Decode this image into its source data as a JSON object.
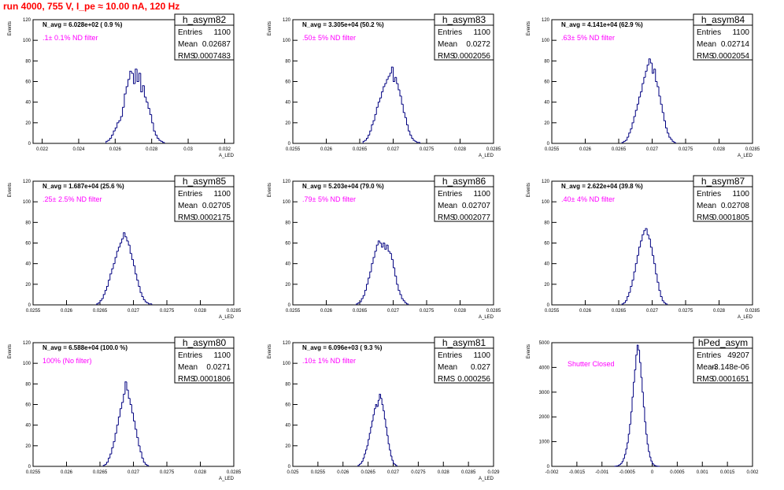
{
  "title": "run 4000,   755 V, I_pe ≈ 10.00 nA, 120 Hz",
  "chart_data": [
    {
      "type": "bar",
      "name": "h_asym82",
      "navg": "N_avg = 6.028e+02 ( 0.9 %)",
      "filter": ".1± 0.1% ND filter",
      "stats": [
        [
          "Entries",
          "1100"
        ],
        [
          "Mean",
          "0.02687"
        ],
        [
          "RMS",
          "0.0007483"
        ]
      ],
      "xlabel": "A_LED",
      "ylabel": "Events",
      "xlim": [
        0.0215,
        0.0325
      ],
      "ylim": [
        0,
        120
      ],
      "xticks": [
        "0.022",
        "0.024",
        "0.026",
        "0.028",
        "0.03",
        "0.032"
      ],
      "xtick_values": [
        0.022,
        0.024,
        0.026,
        0.028,
        0.03,
        0.032
      ],
      "yticks": [
        0,
        20,
        40,
        60,
        80,
        100,
        120
      ],
      "bins": {
        "start": 0.0255,
        "width": 0.0001,
        "values": [
          2,
          3,
          5,
          8,
          12,
          15,
          20,
          22,
          26,
          35,
          48,
          55,
          62,
          70,
          68,
          58,
          72,
          60,
          68,
          50,
          56,
          45,
          40,
          34,
          28,
          20,
          12,
          8,
          5,
          3,
          2,
          1
        ]
      }
    },
    {
      "type": "bar",
      "name": "h_asym83",
      "navg": "N_avg = 3.305e+04 (50.2 %)",
      "filter": ".50± 5% ND filter",
      "stats": [
        [
          "Entries",
          "1100"
        ],
        [
          "Mean",
          "0.0272"
        ],
        [
          "RMS",
          "0.0002056"
        ]
      ],
      "xlabel": "A_LED",
      "ylabel": "Events",
      "xlim": [
        0.0255,
        0.0285
      ],
      "ylim": [
        0,
        120
      ],
      "xticks": [
        "0.0255",
        "0.026",
        "0.0265",
        "0.027",
        "0.0275",
        "0.028",
        "0.0285"
      ],
      "xtick_values": [
        0.0255,
        0.026,
        0.0265,
        0.027,
        0.0275,
        0.028,
        0.0285
      ],
      "yticks": [
        0,
        20,
        40,
        60,
        80,
        100,
        120
      ],
      "bins": {
        "start": 0.02655,
        "width": 2.5e-05,
        "values": [
          2,
          3,
          5,
          8,
          12,
          18,
          22,
          28,
          35,
          40,
          44,
          50,
          55,
          58,
          62,
          65,
          68,
          74,
          60,
          64,
          58,
          52,
          46,
          38,
          30,
          25,
          18,
          12,
          8,
          5,
          3,
          2,
          1,
          1
        ]
      }
    },
    {
      "type": "bar",
      "name": "h_asym84",
      "navg": "N_avg = 4.141e+04 (62.9 %)",
      "filter": ".63± 5% ND filter",
      "stats": [
        [
          "Entries",
          "1100"
        ],
        [
          "Mean",
          "0.02714"
        ],
        [
          "RMS",
          "0.0002054"
        ]
      ],
      "xlabel": "A_LED",
      "ylabel": "Events",
      "xlim": [
        0.0255,
        0.0285
      ],
      "ylim": [
        0,
        120
      ],
      "xticks": [
        "0.0255",
        "0.026",
        "0.0265",
        "0.027",
        "0.0275",
        "0.028",
        "0.0285"
      ],
      "xtick_values": [
        0.0255,
        0.026,
        0.0265,
        0.027,
        0.0275,
        0.028,
        0.0285
      ],
      "yticks": [
        0,
        20,
        40,
        60,
        80,
        100,
        120
      ],
      "bins": {
        "start": 0.02655,
        "width": 2.5e-05,
        "values": [
          1,
          2,
          3,
          6,
          10,
          14,
          20,
          26,
          32,
          38,
          45,
          50,
          58,
          64,
          70,
          76,
          82,
          78,
          68,
          72,
          60,
          55,
          46,
          38,
          30,
          22,
          15,
          10,
          6,
          4,
          2,
          1
        ]
      }
    },
    {
      "type": "bar",
      "name": "h_asym85",
      "navg": "N_avg = 1.687e+04 (25.6 %)",
      "filter": ".25± 2.5% ND filter",
      "stats": [
        [
          "Entries",
          "1100"
        ],
        [
          "Mean",
          "0.02705"
        ],
        [
          "RMS",
          "0.0002175"
        ]
      ],
      "xlabel": "A_LED",
      "ylabel": "Events",
      "xlim": [
        0.0255,
        0.0285
      ],
      "ylim": [
        0,
        120
      ],
      "xticks": [
        "0.0255",
        "0.026",
        "0.0265",
        "0.027",
        "0.0275",
        "0.028",
        "0.0285"
      ],
      "xtick_values": [
        0.0255,
        0.026,
        0.0265,
        0.027,
        0.0275,
        0.028,
        0.0285
      ],
      "yticks": [
        0,
        20,
        40,
        60,
        80,
        100,
        120
      ],
      "bins": {
        "start": 0.02645,
        "width": 2.5e-05,
        "values": [
          1,
          2,
          4,
          6,
          10,
          14,
          18,
          24,
          30,
          35,
          40,
          46,
          52,
          56,
          60,
          64,
          70,
          66,
          62,
          58,
          50,
          44,
          38,
          30,
          24,
          18,
          12,
          8,
          5,
          3,
          2,
          1,
          1
        ]
      }
    },
    {
      "type": "bar",
      "name": "h_asym86",
      "navg": "N_avg = 5.203e+04 (79.0 %)",
      "filter": ".79± 5% ND filter",
      "stats": [
        [
          "Entries",
          "1100"
        ],
        [
          "Mean",
          "0.02707"
        ],
        [
          "RMS",
          "0.0002077"
        ]
      ],
      "xlabel": "A_LED",
      "ylabel": "Events",
      "xlim": [
        0.0255,
        0.0285
      ],
      "ylim": [
        0,
        120
      ],
      "xticks": [
        "0.0255",
        "0.026",
        "0.0265",
        "0.027",
        "0.0275",
        "0.028",
        "0.0285"
      ],
      "xtick_values": [
        0.0255,
        0.026,
        0.0265,
        0.027,
        0.0275,
        0.028,
        0.0285
      ],
      "yticks": [
        0,
        20,
        40,
        60,
        80,
        100,
        120
      ],
      "bins": {
        "start": 0.02645,
        "width": 2.5e-05,
        "values": [
          1,
          2,
          3,
          6,
          9,
          14,
          20,
          26,
          32,
          40,
          46,
          52,
          58,
          62,
          60,
          56,
          60,
          54,
          58,
          52,
          50,
          44,
          36,
          28,
          20,
          14,
          10,
          6,
          4,
          2,
          1
        ]
      }
    },
    {
      "type": "bar",
      "name": "h_asym87",
      "navg": "N_avg = 2.622e+04 (39.8 %)",
      "filter": ".40± 4% ND filter",
      "stats": [
        [
          "Entries",
          "1100"
        ],
        [
          "Mean",
          "0.02708"
        ],
        [
          "RMS",
          "0.0001805"
        ]
      ],
      "xlabel": "A_LED",
      "ylabel": "Events",
      "xlim": [
        0.0255,
        0.0285
      ],
      "ylim": [
        0,
        120
      ],
      "xticks": [
        "0.0255",
        "0.026",
        "0.0265",
        "0.027",
        "0.0275",
        "0.028",
        "0.0285"
      ],
      "xtick_values": [
        0.0255,
        0.026,
        0.0265,
        0.027,
        0.0275,
        0.028,
        0.0285
      ],
      "yticks": [
        0,
        20,
        40,
        60,
        80,
        100,
        120
      ],
      "bins": {
        "start": 0.02655,
        "width": 2.5e-05,
        "values": [
          1,
          2,
          4,
          8,
          12,
          18,
          24,
          32,
          40,
          48,
          56,
          62,
          68,
          72,
          74,
          68,
          64,
          56,
          48,
          40,
          30,
          22,
          14,
          8,
          4,
          2,
          1
        ]
      }
    },
    {
      "type": "bar",
      "name": "h_asym80",
      "navg": "N_avg = 6.588e+04 (100.0 %)",
      "filter": "100% (No filter)",
      "stats": [
        [
          "Entries",
          "1100"
        ],
        [
          "Mean",
          "0.0271"
        ],
        [
          "RMS",
          "0.0001806"
        ]
      ],
      "xlabel": "A_LED",
      "ylabel": "Events",
      "xlim": [
        0.0255,
        0.0285
      ],
      "ylim": [
        0,
        120
      ],
      "xticks": [
        "0.0255",
        "0.026",
        "0.0265",
        "0.027",
        "0.0275",
        "0.028",
        "0.0285"
      ],
      "xtick_values": [
        0.0255,
        0.026,
        0.0265,
        0.027,
        0.0275,
        0.028,
        0.0285
      ],
      "yticks": [
        0,
        20,
        40,
        60,
        80,
        100,
        120
      ],
      "bins": {
        "start": 0.02655,
        "width": 2.5e-05,
        "values": [
          1,
          2,
          4,
          8,
          12,
          18,
          24,
          32,
          40,
          48,
          56,
          62,
          70,
          82,
          74,
          66,
          60,
          52,
          44,
          36,
          28,
          20,
          14,
          8,
          4,
          2,
          1
        ]
      }
    },
    {
      "type": "bar",
      "name": "h_asym81",
      "navg": "N_avg = 6.096e+03 ( 9.3 %)",
      "filter": ".10± 1% ND filter",
      "stats": [
        [
          "Entries",
          "1100"
        ],
        [
          "Mean",
          "0.027"
        ],
        [
          "RMS",
          "0.000256"
        ]
      ],
      "xlabel": "A_LED",
      "ylabel": "Events",
      "xlim": [
        0.025,
        0.029
      ],
      "ylim": [
        0,
        120
      ],
      "xticks": [
        "0.025",
        "0.0255",
        "0.026",
        "0.0265",
        "0.027",
        "0.0275",
        "0.028",
        "0.0285",
        "0.029"
      ],
      "xtick_values": [
        0.025,
        0.0255,
        0.026,
        0.0265,
        0.027,
        0.0275,
        0.028,
        0.0285,
        0.029
      ],
      "yticks": [
        0,
        20,
        40,
        60,
        80,
        100,
        120
      ],
      "bins": {
        "start": 0.0263,
        "width": 2.5e-05,
        "values": [
          1,
          2,
          3,
          5,
          8,
          12,
          16,
          20,
          26,
          32,
          38,
          44,
          50,
          56,
          60,
          58,
          64,
          70,
          66,
          60,
          54,
          46,
          38,
          30,
          22,
          16,
          10,
          6,
          3,
          2,
          1
        ]
      }
    },
    {
      "type": "bar",
      "name": "hPed_asym",
      "navg": "",
      "filter": "Shutter Closed",
      "stats": [
        [
          "Entries",
          "49207"
        ],
        [
          "Mean",
          "-3.148e-06"
        ],
        [
          "RMS",
          "0.0001651"
        ]
      ],
      "xlabel": "",
      "ylabel": "Events",
      "xlim": [
        -0.002,
        0.002
      ],
      "ylim": [
        0,
        5000
      ],
      "xticks": [
        "-0.002",
        "-0.0015",
        "-0.001",
        "-0.0005",
        "0",
        "0.0005",
        "0.001",
        "0.0015",
        "0.002"
      ],
      "xtick_values": [
        -0.002,
        -0.0015,
        -0.001,
        -0.0005,
        0,
        0.0005,
        0.001,
        0.0015,
        0.002
      ],
      "yticks": [
        0,
        1000,
        2000,
        3000,
        4000,
        5000
      ],
      "bins": {
        "start": -0.00075,
        "width": 2.5e-05,
        "values": [
          5,
          10,
          20,
          40,
          70,
          120,
          200,
          320,
          480,
          700,
          950,
          1300,
          1700,
          2200,
          2800,
          3400,
          3900,
          4500,
          4900,
          4700,
          4200,
          3600,
          3000,
          2400,
          1800,
          1300,
          900,
          600,
          380,
          220,
          120,
          60,
          30,
          15,
          8,
          4
        ]
      }
    }
  ]
}
